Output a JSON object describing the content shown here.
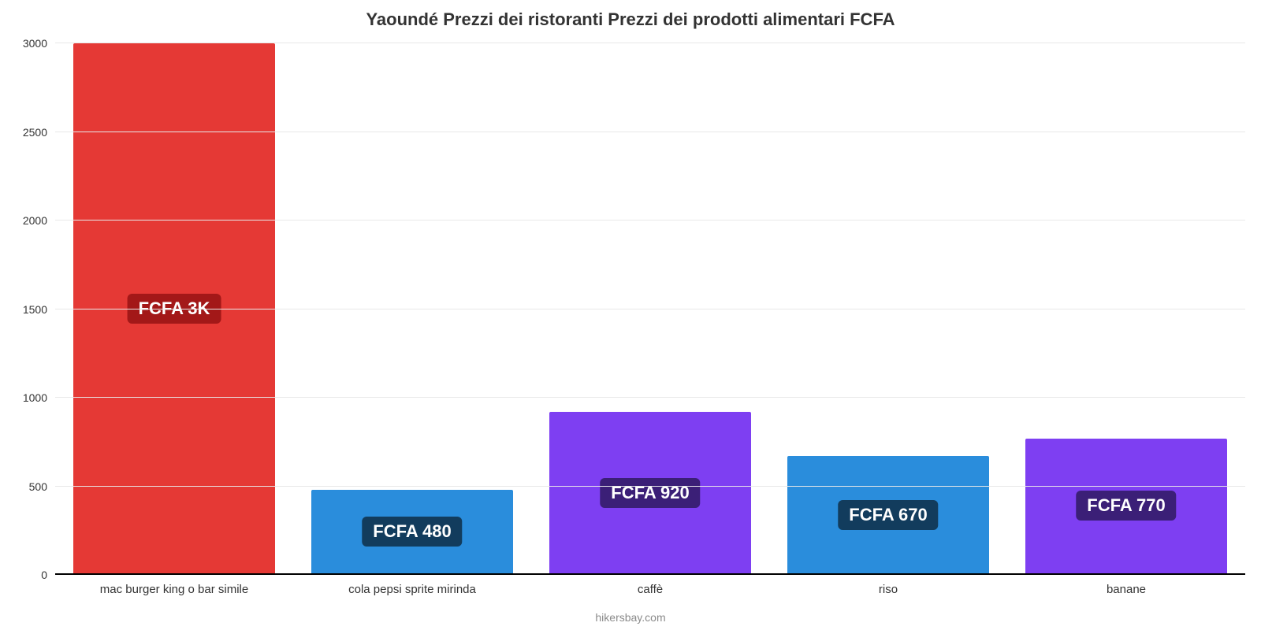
{
  "chart": {
    "type": "bar",
    "title": "Yaoundé Prezzi dei ristoranti Prezzi dei prodotti alimentari FCFA",
    "title_fontsize": 22,
    "title_color": "#333333",
    "footer": "hikersbay.com",
    "footer_color": "#8a8a8a",
    "background_color": "#ffffff",
    "grid_color": "#e8e8e8",
    "axis_color": "#000000",
    "ylim": [
      0,
      3000
    ],
    "ytick_step": 500,
    "yticks": [
      0,
      500,
      1000,
      1500,
      2000,
      2500,
      3000
    ],
    "ylabel_fontsize": 14,
    "xlabel_fontsize": 15,
    "bar_width_pct": 85,
    "value_badge_fontsize": 22,
    "items": [
      {
        "category": "mac burger king o bar simile",
        "value": 3000,
        "value_label": "FCFA 3K",
        "bar_color": "#e53935",
        "badge_bg": "#a31818",
        "badge_text_color": "#ffffff"
      },
      {
        "category": "cola pepsi sprite mirinda",
        "value": 480,
        "value_label": "FCFA 480",
        "bar_color": "#2a8ddc",
        "badge_bg": "#123c5d",
        "badge_text_color": "#ffffff"
      },
      {
        "category": "caffè",
        "value": 920,
        "value_label": "FCFA 920",
        "bar_color": "#7e3ff2",
        "badge_bg": "#3b1f77",
        "badge_text_color": "#ffffff"
      },
      {
        "category": "riso",
        "value": 670,
        "value_label": "FCFA 670",
        "bar_color": "#2a8ddc",
        "badge_bg": "#123c5d",
        "badge_text_color": "#ffffff"
      },
      {
        "category": "banane",
        "value": 770,
        "value_label": "FCFA 770",
        "bar_color": "#7e3ff2",
        "badge_bg": "#3b1f77",
        "badge_text_color": "#ffffff"
      }
    ]
  }
}
